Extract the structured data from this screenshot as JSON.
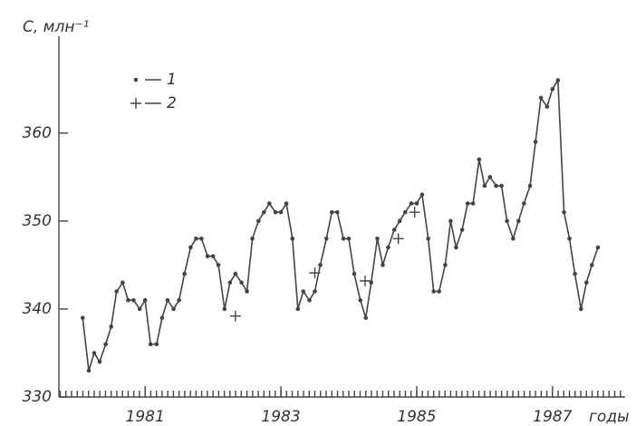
{
  "chart_data": {
    "type": "line",
    "y_label": "C, млн⁻¹",
    "x_label": "годы",
    "xlim": [
      1979.73,
      1988.07
    ],
    "ylim": [
      330,
      371
    ],
    "xticks": [
      1981,
      1983,
      1985,
      1987
    ],
    "yticks": [
      330,
      340,
      350,
      360
    ],
    "x_minor_ticks_per_year": 12,
    "series": [
      {
        "name": "1",
        "color": "#444444",
        "marker": "dot",
        "x": [
          1980.08,
          1980.17,
          1980.25,
          1980.33,
          1980.42,
          1980.5,
          1980.58,
          1980.67,
          1980.75,
          1980.83,
          1980.92,
          1981.0,
          1981.08,
          1981.17,
          1981.25,
          1981.33,
          1981.42,
          1981.5,
          1981.58,
          1981.67,
          1981.75,
          1981.83,
          1981.92,
          1982.0,
          1982.08,
          1982.17,
          1982.25,
          1982.33,
          1982.42,
          1982.5,
          1982.58,
          1982.67,
          1982.75,
          1982.83,
          1982.92,
          1983.0,
          1983.08,
          1983.17,
          1983.25,
          1983.33,
          1983.42,
          1983.5,
          1983.58,
          1983.67,
          1983.75,
          1983.83,
          1983.92,
          1984.0,
          1984.08,
          1984.17,
          1984.25,
          1984.33,
          1984.42,
          1984.5,
          1984.58,
          1984.67,
          1984.75,
          1984.83,
          1984.92,
          1985.0,
          1985.08,
          1985.17,
          1985.25,
          1985.33,
          1985.42,
          1985.5,
          1985.58,
          1985.67,
          1985.75,
          1985.83,
          1985.92,
          1986.0,
          1986.08,
          1986.17,
          1986.25,
          1986.33,
          1986.42,
          1986.5,
          1986.58,
          1986.67,
          1986.75,
          1986.83,
          1986.92,
          1987.0,
          1987.08,
          1987.17,
          1987.25,
          1987.33,
          1987.42,
          1987.5,
          1987.58,
          1987.67
        ],
        "values": [
          339,
          333,
          335,
          334,
          336,
          338,
          342,
          343,
          341,
          341,
          340,
          341,
          336,
          336,
          339,
          341,
          340,
          341,
          344,
          347,
          348,
          348,
          346,
          346,
          345,
          340,
          343,
          344,
          343,
          342,
          348,
          350,
          351,
          352,
          351,
          351,
          352,
          348,
          340,
          342,
          341,
          342,
          345,
          348,
          351,
          351,
          348,
          348,
          344,
          341,
          339,
          343,
          348,
          345,
          347,
          349,
          350,
          351,
          352,
          352,
          353,
          348,
          342,
          342,
          345,
          350,
          347,
          349,
          352,
          352,
          357,
          354,
          355,
          354,
          354,
          350,
          348,
          350,
          352,
          354,
          359,
          364,
          363,
          365,
          366,
          351,
          348,
          344,
          340,
          343,
          345,
          347
        ]
      },
      {
        "name": "2",
        "color": "#444444",
        "marker": "plus",
        "x": [
          1982.33,
          1983.5,
          1984.24,
          1984.73,
          1984.97
        ],
        "values": [
          339.2,
          344.1,
          343.2,
          348,
          351
        ]
      }
    ]
  }
}
